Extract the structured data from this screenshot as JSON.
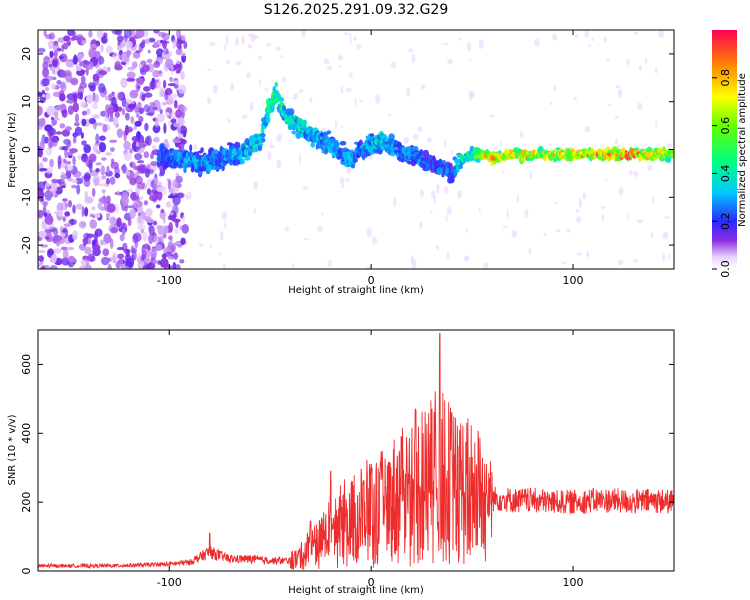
{
  "chart_data": [
    {
      "type": "heatmap",
      "title": "S126.2025.291.09.32.G29",
      "xlabel": "Height of straight line (km)",
      "ylabel": "Frequency (Hz)",
      "xlim": [
        -165,
        150
      ],
      "ylim": [
        -25,
        25
      ],
      "xticks": [
        -100,
        0,
        100
      ],
      "xtick_labels": [
        "-100",
        "0",
        "100"
      ],
      "yticks": [
        20,
        10,
        0,
        -10,
        -20
      ],
      "ytick_labels": [
        "20",
        "10",
        "0",
        "-10",
        "-20"
      ],
      "colorbar": {
        "label": "Normalized spectral amplitude",
        "range": [
          0.0,
          1.0
        ],
        "ticks": [
          0.0,
          0.2,
          0.4,
          0.6,
          0.8
        ],
        "tick_labels": [
          "0.0",
          "0.2",
          "0.4",
          "0.6",
          "0.8"
        ],
        "colormap": "rainbow"
      },
      "ridge": {
        "x": [
          -105,
          -95,
          -85,
          -75,
          -65,
          -55,
          -50,
          -47,
          -44,
          -40,
          -35,
          -30,
          -25,
          -20,
          -15,
          -10,
          -5,
          0,
          5,
          10,
          15,
          20,
          25,
          30,
          35,
          40,
          45,
          50,
          55,
          60,
          70,
          80,
          90,
          100,
          110,
          120,
          130,
          140,
          150
        ],
        "y": [
          -1,
          -2,
          -3,
          -2,
          -1,
          2,
          9,
          12,
          8,
          6,
          5,
          3,
          2,
          1,
          -1,
          -2,
          0,
          1,
          2,
          1,
          -1,
          -1,
          -2,
          -3,
          -4,
          -5,
          -2,
          -1,
          -1,
          -2,
          -1,
          -1,
          -1,
          -1,
          -1,
          -1,
          -1,
          -1,
          -1
        ],
        "amp": [
          0.3,
          0.3,
          0.35,
          0.3,
          0.35,
          0.4,
          0.45,
          0.55,
          0.4,
          0.45,
          0.4,
          0.35,
          0.35,
          0.35,
          0.3,
          0.35,
          0.3,
          0.35,
          0.4,
          0.35,
          0.3,
          0.3,
          0.3,
          0.25,
          0.3,
          0.25,
          0.45,
          0.5,
          0.75,
          0.85,
          0.8,
          0.8,
          0.75,
          0.8,
          0.85,
          0.9,
          0.9,
          0.8,
          0.65
        ]
      },
      "noise_region_x": [
        -165,
        -100
      ]
    },
    {
      "type": "line",
      "title": "",
      "xlabel": "Height of straight line (km)",
      "ylabel": "SNR (10 * v/v)",
      "xlim": [
        -165,
        150
      ],
      "ylim": [
        0,
        700
      ],
      "xticks": [
        -100,
        0,
        100
      ],
      "xtick_labels": [
        "-100",
        "0",
        "100"
      ],
      "yticks": [
        0,
        200,
        400,
        600
      ],
      "ytick_labels": [
        "0",
        "200",
        "400",
        "600"
      ],
      "color": "#ee2c2c",
      "series": [
        {
          "name": "SNR",
          "x": [
            -165,
            -150,
            -130,
            -110,
            -100,
            -90,
            -85,
            -80,
            -75,
            -70,
            -60,
            -50,
            -40,
            -35,
            -30,
            -25,
            -20,
            -15,
            -10,
            -5,
            0,
            5,
            10,
            15,
            20,
            25,
            30,
            33,
            35,
            40,
            45,
            50,
            55,
            60,
            65,
            70,
            80,
            90,
            100,
            110,
            120,
            130,
            140,
            150
          ],
          "y": [
            15,
            15,
            15,
            18,
            20,
            25,
            40,
            55,
            45,
            35,
            35,
            30,
            30,
            40,
            70,
            80,
            110,
            130,
            150,
            160,
            170,
            180,
            200,
            220,
            230,
            250,
            260,
            280,
            270,
            250,
            240,
            230,
            215,
            210,
            210,
            205,
            205,
            200,
            200,
            205,
            205,
            200,
            205,
            200
          ],
          "spike_x": [
            -80,
            -30,
            -20,
            0,
            15,
            22,
            30,
            34,
            40,
            50
          ],
          "spike_y": [
            110,
            145,
            290,
            310,
            390,
            470,
            470,
            690,
            460,
            330
          ]
        }
      ]
    }
  ]
}
